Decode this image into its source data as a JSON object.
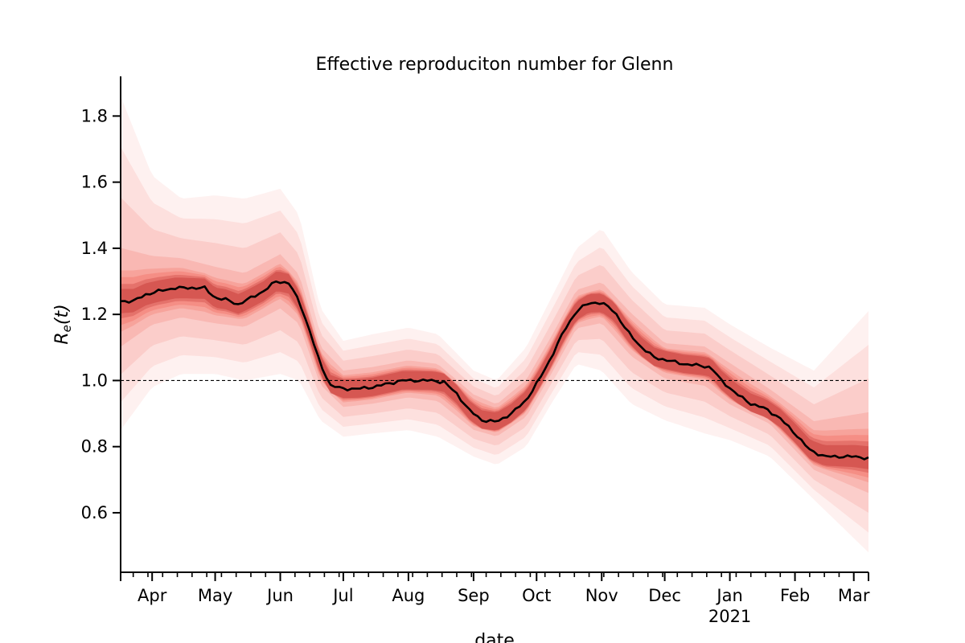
{
  "chart_data": {
    "type": "area",
    "title": "Effective reproduciton number for Glenn",
    "xlabel": "date",
    "ylabel": "R_e(t)",
    "ylabel_display": {
      "main": "R",
      "sub": "e",
      "rest": "(t)"
    },
    "x_range": [
      "2020-03-17",
      "2021-03-08"
    ],
    "ylim": [
      0.42,
      1.92
    ],
    "yticks": [
      0.6,
      0.8,
      1.0,
      1.2,
      1.4,
      1.6,
      1.8
    ],
    "xticks": [
      {
        "date": "2020-04-01",
        "label": "Apr"
      },
      {
        "date": "2020-05-01",
        "label": "May"
      },
      {
        "date": "2020-06-01",
        "label": "Jun"
      },
      {
        "date": "2020-07-01",
        "label": "Jul"
      },
      {
        "date": "2020-08-01",
        "label": "Aug"
      },
      {
        "date": "2020-09-01",
        "label": "Sep"
      },
      {
        "date": "2020-10-01",
        "label": "Oct"
      },
      {
        "date": "2020-11-01",
        "label": "Nov"
      },
      {
        "date": "2020-12-01",
        "label": "Dec"
      },
      {
        "date": "2021-01-01",
        "label": "Jan",
        "sublabel": "2021"
      },
      {
        "date": "2021-02-01",
        "label": "Feb"
      },
      {
        "date": "2021-03-01",
        "label": "Mar"
      }
    ],
    "reference_line": {
      "y": 1.0,
      "style": "dashed"
    },
    "grid": false,
    "colors": {
      "band": "#ef3b2c",
      "band_core": "#b31b1b",
      "median": "#000000",
      "reference": "#000000"
    },
    "series": [
      {
        "role": "median",
        "points": [
          [
            "2020-03-17",
            1.24
          ],
          [
            "2020-03-23",
            1.24
          ],
          [
            "2020-03-29",
            1.26
          ],
          [
            "2020-04-04",
            1.27
          ],
          [
            "2020-04-12",
            1.28
          ],
          [
            "2020-04-20",
            1.28
          ],
          [
            "2020-04-26",
            1.28
          ],
          [
            "2020-05-01",
            1.25
          ],
          [
            "2020-05-06",
            1.245
          ],
          [
            "2020-05-12",
            1.23
          ],
          [
            "2020-05-18",
            1.25
          ],
          [
            "2020-05-24",
            1.27
          ],
          [
            "2020-05-30",
            1.3
          ],
          [
            "2020-06-05",
            1.295
          ],
          [
            "2020-06-10",
            1.24
          ],
          [
            "2020-06-15",
            1.15
          ],
          [
            "2020-06-20",
            1.05
          ],
          [
            "2020-06-25",
            0.985
          ],
          [
            "2020-07-01",
            0.975
          ],
          [
            "2020-07-08",
            0.975
          ],
          [
            "2020-07-15",
            0.98
          ],
          [
            "2020-07-22",
            0.99
          ],
          [
            "2020-07-29",
            1.0
          ],
          [
            "2020-08-05",
            1.0
          ],
          [
            "2020-08-12",
            1.0
          ],
          [
            "2020-08-18",
            0.995
          ],
          [
            "2020-08-24",
            0.96
          ],
          [
            "2020-08-30",
            0.91
          ],
          [
            "2020-09-05",
            0.88
          ],
          [
            "2020-09-12",
            0.875
          ],
          [
            "2020-09-19",
            0.9
          ],
          [
            "2020-09-26",
            0.94
          ],
          [
            "2020-10-02",
            1.0
          ],
          [
            "2020-10-08",
            1.07
          ],
          [
            "2020-10-14",
            1.15
          ],
          [
            "2020-10-20",
            1.21
          ],
          [
            "2020-10-26",
            1.235
          ],
          [
            "2020-11-01",
            1.235
          ],
          [
            "2020-11-07",
            1.21
          ],
          [
            "2020-11-13",
            1.15
          ],
          [
            "2020-11-20",
            1.1
          ],
          [
            "2020-11-26",
            1.07
          ],
          [
            "2020-12-03",
            1.06
          ],
          [
            "2020-12-10",
            1.05
          ],
          [
            "2020-12-18",
            1.045
          ],
          [
            "2020-12-23",
            1.04
          ],
          [
            "2020-12-28",
            1.0
          ],
          [
            "2021-01-04",
            0.96
          ],
          [
            "2021-01-11",
            0.93
          ],
          [
            "2021-01-18",
            0.915
          ],
          [
            "2021-01-25",
            0.885
          ],
          [
            "2021-02-01",
            0.84
          ],
          [
            "2021-02-08",
            0.79
          ],
          [
            "2021-02-15",
            0.77
          ],
          [
            "2021-02-22",
            0.77
          ],
          [
            "2021-03-01",
            0.77
          ],
          [
            "2021-03-08",
            0.765
          ]
        ]
      },
      {
        "role": "band",
        "level": "95%",
        "lower": [
          [
            "2020-03-17",
            0.85
          ],
          [
            "2020-04-01",
            0.98
          ],
          [
            "2020-04-15",
            1.02
          ],
          [
            "2020-05-01",
            1.02
          ],
          [
            "2020-05-15",
            1.0
          ],
          [
            "2020-06-01",
            1.02
          ],
          [
            "2020-06-10",
            1.0
          ],
          [
            "2020-06-20",
            0.88
          ],
          [
            "2020-07-01",
            0.83
          ],
          [
            "2020-07-15",
            0.84
          ],
          [
            "2020-08-01",
            0.85
          ],
          [
            "2020-08-15",
            0.83
          ],
          [
            "2020-09-01",
            0.77
          ],
          [
            "2020-09-12",
            0.745
          ],
          [
            "2020-09-26",
            0.8
          ],
          [
            "2020-10-08",
            0.93
          ],
          [
            "2020-10-20",
            1.05
          ],
          [
            "2020-11-01",
            1.03
          ],
          [
            "2020-11-15",
            0.93
          ],
          [
            "2020-12-01",
            0.88
          ],
          [
            "2020-12-20",
            0.84
          ],
          [
            "2021-01-01",
            0.82
          ],
          [
            "2021-01-20",
            0.77
          ],
          [
            "2021-02-10",
            0.64
          ],
          [
            "2021-03-08",
            0.48
          ]
        ],
        "upper": [
          [
            "2020-03-17",
            1.86
          ],
          [
            "2020-04-01",
            1.62
          ],
          [
            "2020-04-15",
            1.55
          ],
          [
            "2020-05-01",
            1.56
          ],
          [
            "2020-05-15",
            1.55
          ],
          [
            "2020-06-01",
            1.58
          ],
          [
            "2020-06-10",
            1.5
          ],
          [
            "2020-06-20",
            1.22
          ],
          [
            "2020-07-01",
            1.12
          ],
          [
            "2020-07-15",
            1.14
          ],
          [
            "2020-08-01",
            1.16
          ],
          [
            "2020-08-15",
            1.14
          ],
          [
            "2020-09-01",
            1.03
          ],
          [
            "2020-09-12",
            1.0
          ],
          [
            "2020-09-26",
            1.1
          ],
          [
            "2020-10-08",
            1.25
          ],
          [
            "2020-10-20",
            1.4
          ],
          [
            "2020-11-01",
            1.46
          ],
          [
            "2020-11-15",
            1.33
          ],
          [
            "2020-12-01",
            1.23
          ],
          [
            "2020-12-20",
            1.22
          ],
          [
            "2021-01-01",
            1.17
          ],
          [
            "2021-01-20",
            1.1
          ],
          [
            "2021-02-10",
            1.03
          ],
          [
            "2021-03-08",
            1.21
          ]
        ]
      },
      {
        "role": "band",
        "level": "50%",
        "lower": [
          [
            "2020-03-17",
            1.13
          ],
          [
            "2020-04-01",
            1.19
          ],
          [
            "2020-04-15",
            1.21
          ],
          [
            "2020-05-01",
            1.19
          ],
          [
            "2020-05-15",
            1.18
          ],
          [
            "2020-06-01",
            1.24
          ],
          [
            "2020-06-10",
            1.19
          ],
          [
            "2020-06-20",
            1.0
          ],
          [
            "2020-07-01",
            0.93
          ],
          [
            "2020-07-15",
            0.94
          ],
          [
            "2020-08-01",
            0.96
          ],
          [
            "2020-08-15",
            0.95
          ],
          [
            "2020-09-01",
            0.86
          ],
          [
            "2020-09-12",
            0.84
          ],
          [
            "2020-09-26",
            0.9
          ],
          [
            "2020-10-08",
            1.03
          ],
          [
            "2020-10-20",
            1.17
          ],
          [
            "2020-11-01",
            1.19
          ],
          [
            "2020-11-15",
            1.09
          ],
          [
            "2020-12-01",
            1.02
          ],
          [
            "2020-12-20",
            1.0
          ],
          [
            "2021-01-01",
            0.94
          ],
          [
            "2021-01-20",
            0.88
          ],
          [
            "2021-02-10",
            0.74
          ],
          [
            "2021-03-08",
            0.68
          ]
        ],
        "upper": [
          [
            "2020-03-17",
            1.35
          ],
          [
            "2020-04-01",
            1.35
          ],
          [
            "2020-04-15",
            1.35
          ],
          [
            "2020-05-01",
            1.32
          ],
          [
            "2020-05-15",
            1.3
          ],
          [
            "2020-06-01",
            1.36
          ],
          [
            "2020-06-10",
            1.3
          ],
          [
            "2020-06-20",
            1.09
          ],
          [
            "2020-07-01",
            1.02
          ],
          [
            "2020-07-15",
            1.03
          ],
          [
            "2020-08-01",
            1.05
          ],
          [
            "2020-08-15",
            1.04
          ],
          [
            "2020-09-01",
            0.95
          ],
          [
            "2020-09-12",
            0.92
          ],
          [
            "2020-09-26",
            0.99
          ],
          [
            "2020-10-08",
            1.12
          ],
          [
            "2020-10-20",
            1.26
          ],
          [
            "2020-11-01",
            1.28
          ],
          [
            "2020-11-15",
            1.19
          ],
          [
            "2020-12-01",
            1.1
          ],
          [
            "2020-12-20",
            1.09
          ],
          [
            "2021-01-01",
            1.04
          ],
          [
            "2021-01-20",
            0.96
          ],
          [
            "2021-02-10",
            0.86
          ],
          [
            "2021-03-08",
            0.87
          ]
        ]
      }
    ]
  }
}
